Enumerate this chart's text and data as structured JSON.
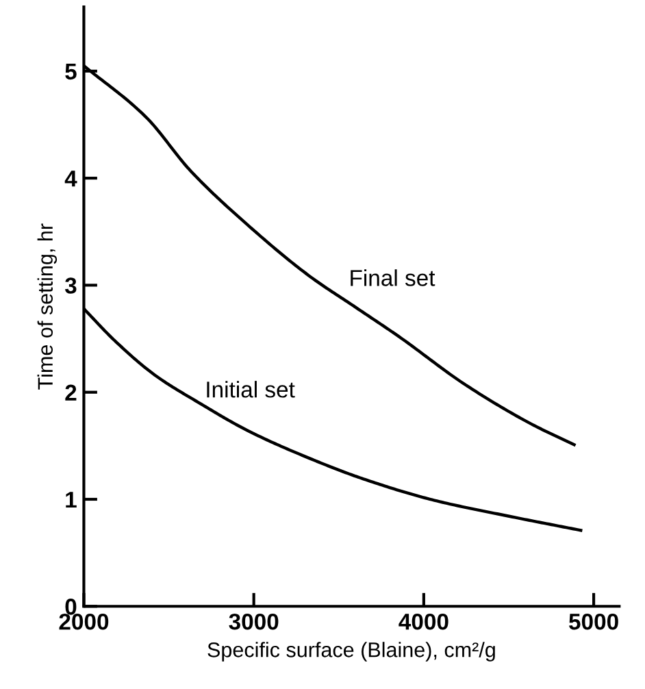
{
  "chart_data": {
    "type": "line",
    "xlabel": "Specific surface (Blaine), cm²/g",
    "ylabel": "Time of setting, hr",
    "xlim": [
      2000,
      5150
    ],
    "ylim": [
      0,
      5.6
    ],
    "xticks": [
      2000,
      3000,
      4000,
      5000
    ],
    "yticks": [
      0,
      1,
      2,
      3,
      4,
      5
    ],
    "grid": false,
    "legend": false,
    "marker": "none",
    "line_style": "solid",
    "series": [
      {
        "name": "Final set",
        "color": "#000000",
        "x": [
          2000,
          2366,
          2627,
          2966,
          3332,
          3593,
          3854,
          4245,
          4637,
          4885
        ],
        "values": [
          5.05,
          4.57,
          4.07,
          3.56,
          3.08,
          2.8,
          2.52,
          2.07,
          1.7,
          1.51
        ]
      },
      {
        "name": "Initial set",
        "color": "#000000",
        "x": [
          2000,
          2183,
          2418,
          2679,
          2966,
          3332,
          3645,
          4063,
          4507,
          4924
        ],
        "values": [
          2.78,
          2.48,
          2.16,
          1.9,
          1.64,
          1.38,
          1.19,
          0.99,
          0.84,
          0.71
        ]
      }
    ]
  }
}
